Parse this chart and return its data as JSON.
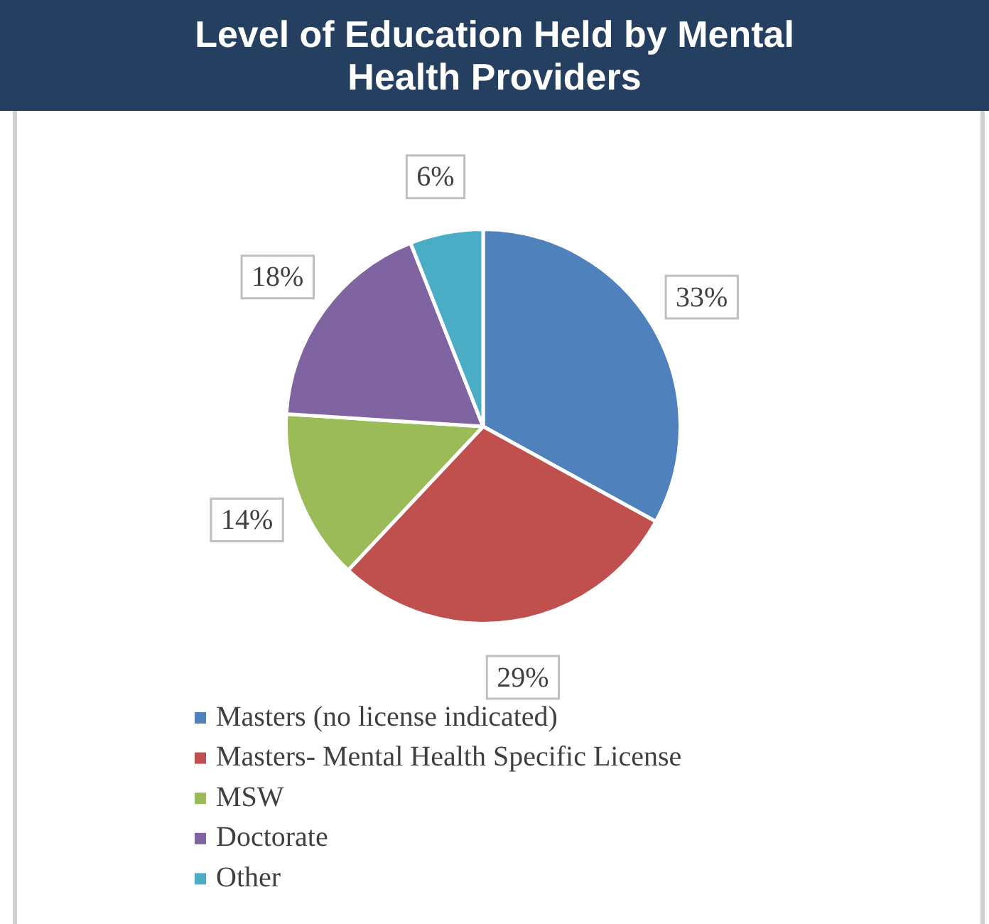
{
  "chart_data": {
    "type": "pie",
    "title": "Level of Education Held by Mental Health Providers",
    "categories": [
      "Masters (no license indicated)",
      "Masters- Mental Health Specific License",
      "MSW",
      "Doctorate",
      "Other"
    ],
    "values": [
      33,
      29,
      14,
      18,
      6
    ],
    "colors": [
      "#4f81bd",
      "#c0504d",
      "#9bbb59",
      "#8064a2",
      "#4bacc6"
    ],
    "value_labels": [
      "33%",
      "29%",
      "14%",
      "18%",
      "6%"
    ],
    "legend": "bottom"
  }
}
